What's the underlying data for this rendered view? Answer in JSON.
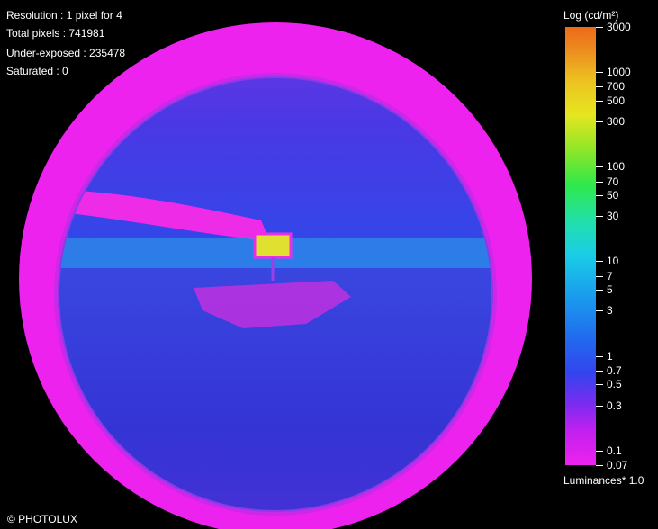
{
  "overlay": {
    "resolution": "Resolution : 1 pixel for 4",
    "total_pixels": "Total pixels : 741981",
    "under_exposed": "Under-exposed : 235478",
    "saturated": "Saturated : 0",
    "credit": "© PHOTOLUX"
  },
  "legend": {
    "title": "Log (cd/m²)",
    "footer": "Luminances* 1.0",
    "scale": "log",
    "range": [
      0.07,
      3000
    ],
    "ticks": [
      "3000",
      "1000",
      "700",
      "500",
      "300",
      "100",
      "70",
      "50",
      "30",
      "10",
      "7",
      "5",
      "3",
      "1",
      "0.7",
      "0.5",
      "0.3",
      "0.1",
      "0.07"
    ]
  },
  "colors": {
    "background": "#000000",
    "outer_ring": "#ee22ee",
    "sky": "#3040e6",
    "ground": "#3c3cd8",
    "horizon_band": "#2aa8e8",
    "sign": "#e0e030"
  }
}
